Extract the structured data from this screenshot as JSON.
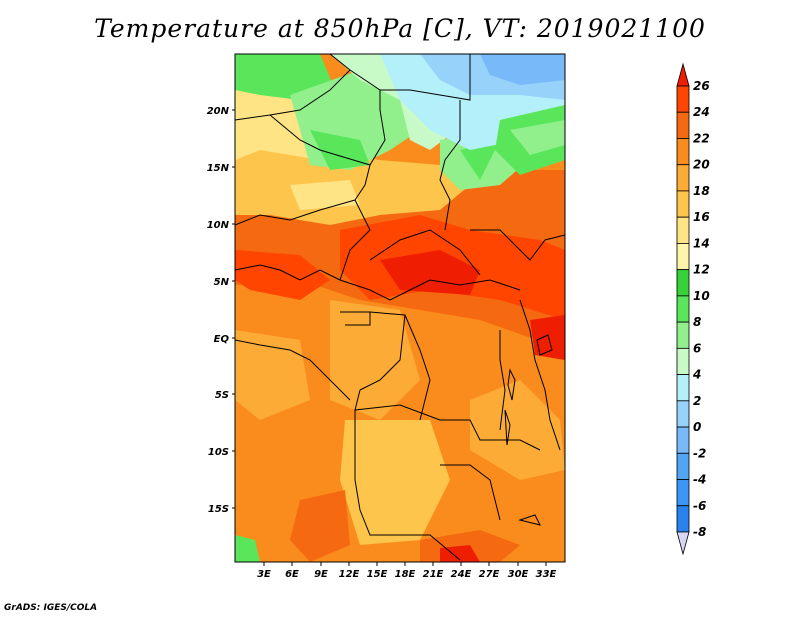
{
  "title": "Temperature at 850hPa [C], VT: 2019021100",
  "credit": "GrADS: IGES/COLA",
  "lat_labels": [
    "20N",
    "15N",
    "10N",
    "5N",
    "EQ",
    "5S",
    "10S",
    "15S"
  ],
  "lon_labels": [
    "3E",
    "6E",
    "9E",
    "12E",
    "15E",
    "18E",
    "21E",
    "24E",
    "27E",
    "30E",
    "33E"
  ],
  "colorbar": {
    "labels": [
      "26",
      "24",
      "22",
      "20",
      "18",
      "16",
      "14",
      "12",
      "10",
      "8",
      "6",
      "4",
      "2",
      "0",
      "-2",
      "-4",
      "-6",
      "-8"
    ],
    "colors": [
      "#f01e00",
      "#ff4500",
      "#f56a10",
      "#fa8c1e",
      "#fdab37",
      "#fdc54c",
      "#fee485",
      "#fff5aa",
      "#37d237",
      "#5ae65a",
      "#91f08c",
      "#c8fac8",
      "#b4f0fa",
      "#96d2fa",
      "#78b9fa",
      "#50a5f5",
      "#3c96f5",
      "#2882f0",
      "#1464d2",
      "#1e3cb4",
      "#0a1e78"
    ]
  }
}
